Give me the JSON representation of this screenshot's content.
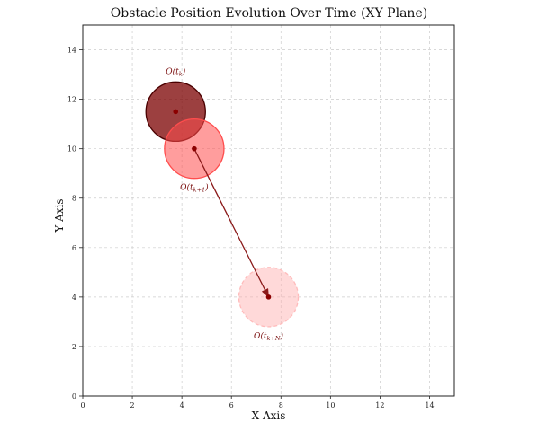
{
  "chart_data": {
    "type": "scatter",
    "title": "Obstacle Position Evolution Over Time (XY Plane)",
    "xlabel": "X Axis",
    "ylabel": "Y Axis",
    "xlim": [
      0,
      15
    ],
    "ylim": [
      0,
      15
    ],
    "xticks": [
      0,
      2,
      4,
      6,
      8,
      10,
      12,
      14
    ],
    "yticks": [
      0,
      2,
      4,
      6,
      8,
      10,
      12,
      14
    ],
    "grid": true,
    "obstacles": [
      {
        "label": "O(t_k)",
        "label_main": "O(t",
        "label_sub": "k",
        "label_end": ")",
        "x": 3.75,
        "y": 11.5,
        "radius": 1.2,
        "fill": "#7b0000",
        "fill_opacity": 0.75,
        "edge": "#4a0000",
        "edge_style": "solid",
        "label_position": "above"
      },
      {
        "label": "O(t_{k+1})",
        "label_main": "O(t",
        "label_sub": "k+1",
        "label_end": ")",
        "x": 4.5,
        "y": 10.0,
        "radius": 1.2,
        "fill": "#ff4d4d",
        "fill_opacity": 0.55,
        "edge": "#ff4d4d",
        "edge_style": "solid",
        "label_position": "below"
      },
      {
        "label": "O(t_{k+N})",
        "label_main": "O(t",
        "label_sub": "k+N",
        "label_end": ")",
        "x": 7.5,
        "y": 4.0,
        "radius": 1.2,
        "fill": "#ffaaaa",
        "fill_opacity": 0.45,
        "edge": "#ffbbbb",
        "edge_style": "dashed",
        "label_position": "below"
      }
    ],
    "arrow": {
      "from": [
        4.5,
        10.0
      ],
      "to": [
        7.5,
        4.0
      ],
      "color": "#8b1a1a"
    },
    "center_marker_color": "#8b0000"
  }
}
